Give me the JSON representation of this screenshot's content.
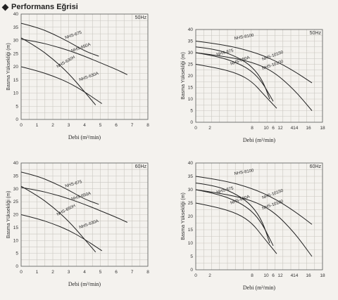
{
  "header": {
    "title": "Performans Eğrisi"
  },
  "chart_data": [
    {
      "type": "line",
      "frequency": "50Hz",
      "xlabel": "Debi (m³/min)",
      "ylabel": "Basma Yüksekliği (m)",
      "xlim": [
        0,
        8
      ],
      "ylim": [
        0,
        40
      ],
      "xticks": [
        "0",
        "1",
        "2",
        "3",
        "4",
        "5",
        "6",
        "7",
        "8"
      ],
      "yticks": [
        "0",
        "5",
        "10",
        "15",
        "20",
        "25",
        "30",
        "35",
        "40"
      ],
      "series": [
        {
          "name": "NHS-675",
          "x": [
            0,
            1,
            2,
            3,
            4,
            4.9
          ],
          "y": [
            36.5,
            35,
            32.5,
            29.5,
            26,
            24
          ]
        },
        {
          "name": "NHS-650A",
          "x": [
            0,
            1,
            2,
            3,
            4,
            5,
            6,
            6.7
          ],
          "y": [
            30.5,
            29.5,
            28,
            26.2,
            24,
            21.5,
            19,
            17
          ]
        },
        {
          "name": "NHS-630H",
          "x": [
            0,
            1,
            2,
            3,
            4,
            4.7
          ],
          "y": [
            31,
            27.5,
            23,
            17.5,
            10.5,
            5.5
          ]
        },
        {
          "name": "NHS-630A",
          "x": [
            0,
            1,
            2,
            3,
            4,
            5.1
          ],
          "y": [
            20,
            18.5,
            16.5,
            14,
            10.5,
            6
          ]
        }
      ]
    },
    {
      "type": "line",
      "frequency": "50Hz",
      "xlabel": "Debi (m³/min)",
      "ylabel": "Basma Yüksekliği (m)",
      "xlim": [
        0,
        18
      ],
      "ylim": [
        0,
        40
      ],
      "xticks": [
        "0",
        "2",
        "8",
        "10",
        "6",
        "12",
        "414",
        "16",
        "18"
      ],
      "xtick_pos": [
        0,
        2,
        8,
        10,
        11,
        12,
        14,
        16,
        18
      ],
      "yticks": [
        "0",
        "5",
        "10",
        "15",
        "20",
        "25",
        "30",
        "35",
        "40"
      ],
      "series": [
        {
          "name": "NHS-8100",
          "x": [
            0,
            4,
            8,
            11,
            14,
            16.5
          ],
          "y": [
            35,
            33.5,
            30.5,
            27,
            22,
            17
          ]
        },
        {
          "name": "NHS-10150",
          "x": [
            0,
            4,
            8,
            11,
            14,
            16.5
          ],
          "y": [
            30,
            28.5,
            26,
            22,
            14,
            5
          ]
        },
        {
          "name": "NHS-10100",
          "x": [
            0,
            3,
            6,
            8,
            9.5,
            10.5
          ],
          "y": [
            32.5,
            31.5,
            28,
            24,
            18,
            10
          ]
        },
        {
          "name": "NHS-875",
          "x": [
            0,
            3,
            6,
            8,
            9.5,
            11
          ],
          "y": [
            30,
            28.5,
            25.5,
            22,
            17,
            9
          ]
        },
        {
          "name": "NHS-850A",
          "x": [
            0,
            3,
            6,
            8,
            9.5,
            11.5
          ],
          "y": [
            25,
            23.5,
            21,
            17.5,
            12.5,
            6
          ]
        }
      ]
    },
    {
      "type": "line",
      "frequency": "60Hz",
      "xlabel": "Debi (m³/min)",
      "ylabel": "Basma Yüksekliği (m)",
      "xlim": [
        0,
        8
      ],
      "ylim": [
        0,
        40
      ],
      "xticks": [
        "0",
        "1",
        "2",
        "3",
        "4",
        "5",
        "6",
        "7",
        "8"
      ],
      "yticks": [
        "0",
        "5",
        "10",
        "15",
        "20",
        "25",
        "30",
        "35",
        "40"
      ],
      "series": [
        {
          "name": "NHS-675",
          "x": [
            0,
            1,
            2,
            3,
            4,
            4.9
          ],
          "y": [
            36.5,
            35,
            32.5,
            29.5,
            26,
            24
          ]
        },
        {
          "name": "NHS-650A",
          "x": [
            0,
            1,
            2,
            3,
            4,
            5,
            6,
            6.7
          ],
          "y": [
            30.5,
            29.5,
            28,
            26.2,
            24,
            21.5,
            19,
            17
          ]
        },
        {
          "name": "NHS-650H",
          "x": [
            0,
            1,
            2,
            3,
            4,
            4.7
          ],
          "y": [
            31,
            27.5,
            23,
            17.5,
            10.5,
            5.5
          ]
        },
        {
          "name": "NHS-630A",
          "x": [
            0,
            1,
            2,
            3,
            4,
            5.1
          ],
          "y": [
            20,
            18.5,
            16.5,
            14,
            10.5,
            6
          ]
        }
      ]
    },
    {
      "type": "line",
      "frequency": "60Hz",
      "xlabel": "Debi (m³/min)",
      "ylabel": "Basma Yüksekliği (m)",
      "xlim": [
        0,
        18
      ],
      "ylim": [
        0,
        40
      ],
      "xticks": [
        "0",
        "2",
        "8",
        "10",
        "6",
        "12",
        "414",
        "16",
        "18"
      ],
      "xtick_pos": [
        0,
        2,
        8,
        10,
        11,
        12,
        14,
        16,
        18
      ],
      "yticks": [
        "0",
        "5",
        "10",
        "15",
        "20",
        "25",
        "30",
        "35",
        "40"
      ],
      "series": [
        {
          "name": "NHS-8100",
          "x": [
            0,
            4,
            8,
            11,
            14,
            16.5
          ],
          "y": [
            35,
            33.5,
            30.5,
            27,
            22,
            17
          ]
        },
        {
          "name": "NHS-10150",
          "x": [
            0,
            4,
            8,
            11,
            14,
            16.5
          ],
          "y": [
            30,
            28.5,
            26,
            22,
            14,
            5
          ]
        },
        {
          "name": "NHS-10100",
          "x": [
            0,
            3,
            6,
            8,
            9.5,
            10.5
          ],
          "y": [
            32.5,
            31.5,
            28,
            24,
            18,
            10
          ]
        },
        {
          "name": "NHS-875",
          "x": [
            0,
            3,
            6,
            8,
            9.5,
            11
          ],
          "y": [
            30,
            28.5,
            25.5,
            22,
            17,
            9
          ]
        },
        {
          "name": "NHS-850A",
          "x": [
            0,
            3,
            6,
            8,
            9.5,
            11.5
          ],
          "y": [
            25,
            23.5,
            21,
            17.5,
            12.5,
            6
          ]
        }
      ]
    }
  ]
}
